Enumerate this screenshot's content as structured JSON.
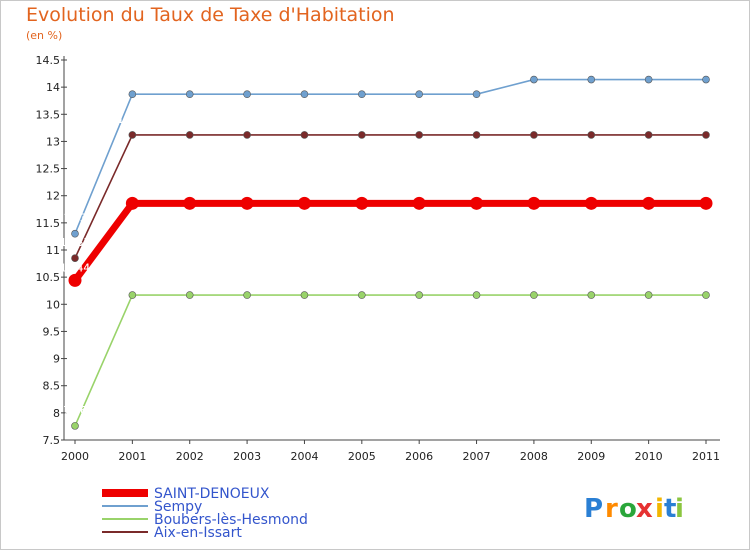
{
  "chart_data": {
    "type": "line",
    "title": "Evolution du Taux de Taxe d'Habitation",
    "subtitle": "(en %)",
    "x": [
      "2000",
      "2001",
      "2002",
      "2003",
      "2004",
      "2005",
      "2006",
      "2007",
      "2008",
      "2009",
      "2010",
      "2011"
    ],
    "ylim": [
      7.5,
      14.5
    ],
    "yticks": [
      "7.5",
      "8",
      "8.5",
      "9",
      "9.5",
      "10",
      "10.5",
      "11",
      "11.5",
      "12",
      "12.5",
      "13",
      "13.5",
      "14",
      "14.5"
    ],
    "grid": false,
    "legend": "bottom-left",
    "series": [
      {
        "name": "SAINT-DENOEUX",
        "color": "#ee0000",
        "values": [
          10.44,
          11.86,
          11.86,
          11.86,
          11.86,
          11.86,
          11.86,
          11.86,
          11.86,
          11.86,
          11.86,
          11.86
        ],
        "labels": [
          "10.44",
          "11.86",
          "11.86",
          "11.86",
          "11.86",
          "11.86",
          "11.86",
          "11.86",
          "11.86",
          "11.86",
          "11.86",
          "11.86"
        ]
      },
      {
        "name": "Sempy",
        "color": "#6fa0cf",
        "values": [
          11.3,
          13.87,
          13.87,
          13.87,
          13.87,
          13.87,
          13.87,
          13.87,
          14.14,
          14.14,
          14.14,
          14.14
        ],
        "labels": [
          "11.3",
          "13.87",
          "13.87",
          "13.87",
          "13.87",
          "13.87",
          "13.87",
          "13.87",
          "14.14",
          "14.14",
          "14.14",
          "14.14"
        ]
      },
      {
        "name": "Boubers-lès-Hesmond",
        "color": "#99d36a",
        "values": [
          7.76,
          10.17,
          10.17,
          10.17,
          10.17,
          10.17,
          10.17,
          10.17,
          10.17,
          10.17,
          10.17,
          10.17
        ],
        "labels": [
          "7.76",
          "10.17",
          "10.17",
          "10.17",
          "10.17",
          "10.17",
          "10.17",
          "10.17",
          "10.17",
          "10.17",
          "10.17",
          "10.17"
        ]
      },
      {
        "name": "Aix-en-Issart",
        "color": "#7a2a2a",
        "values": [
          10.85,
          13.12,
          13.12,
          13.12,
          13.12,
          13.12,
          13.12,
          13.12,
          13.12,
          13.12,
          13.12,
          13.12
        ],
        "labels": [
          "10.85",
          "13.12",
          "13.12",
          "13.12",
          "13.12",
          "13.12",
          "13.12",
          "13.12",
          "13.12",
          "13.12",
          "13.12",
          "13.12"
        ]
      }
    ]
  },
  "brand": {
    "letters": [
      "P",
      "r",
      "o",
      "x",
      "i",
      "t",
      "i"
    ],
    "colors": [
      "#2a7fd4",
      "#ff8a00",
      "#2aa63a",
      "#e63232",
      "#f2b600",
      "#2a7fd4",
      "#8bc53f"
    ]
  }
}
